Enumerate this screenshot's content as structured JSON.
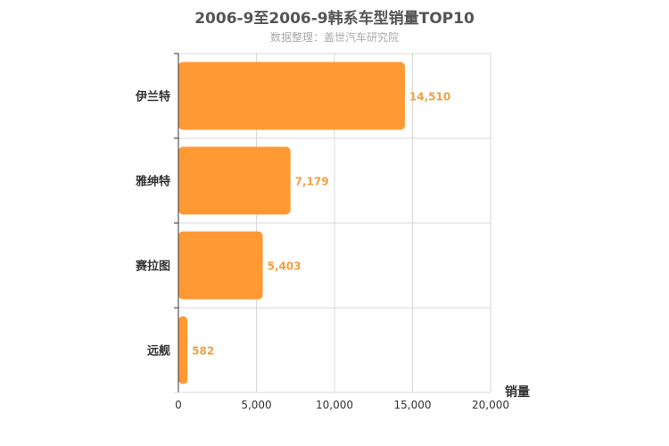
{
  "chart_data": {
    "type": "bar",
    "orientation": "horizontal",
    "title": "2006-9至2006-9韩系车型销量TOP10",
    "subtitle": "数据整理：盖世汽车研究院",
    "xlabel": "销量",
    "ylabel": "",
    "categories": [
      "伊兰特",
      "雅绅特",
      "赛拉图",
      "远舰"
    ],
    "values": [
      14510,
      7179,
      5403,
      582
    ],
    "value_labels": [
      "14,510",
      "7,179",
      "5,403",
      "582"
    ],
    "xlim": [
      0,
      20000
    ],
    "x_ticks": [
      0,
      5000,
      10000,
      15000,
      20000
    ],
    "x_tick_labels": [
      "0",
      "5,000",
      "10,000",
      "15,000",
      "20,000"
    ],
    "grid": true,
    "legend": "none",
    "colors": {
      "bar": "#ff9933",
      "value_label": "#f0a040",
      "grid": "#d9d9d9",
      "axis": "#333333",
      "title": "#555555",
      "subtitle": "#aaaaaa"
    }
  }
}
